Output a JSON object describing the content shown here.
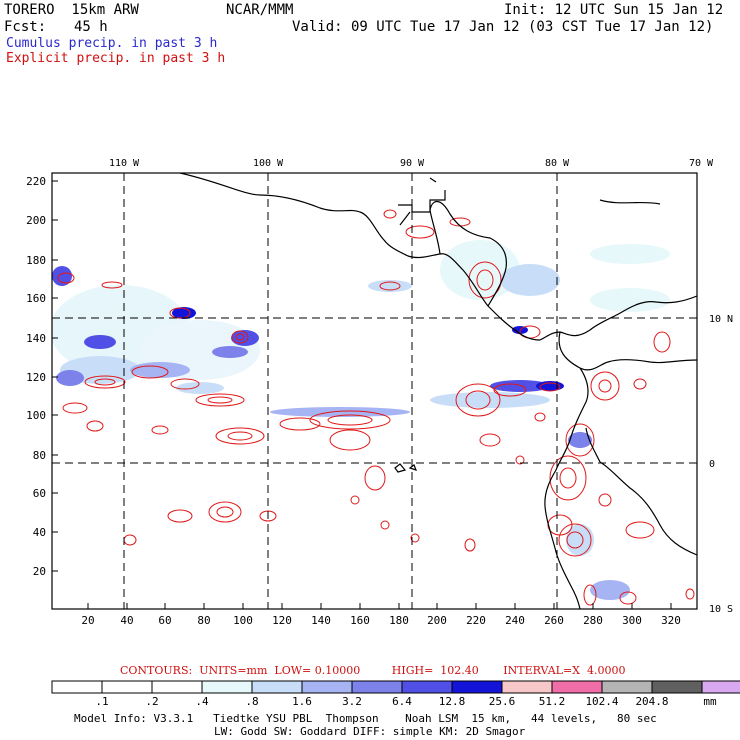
{
  "header": {
    "model": "TORERO  15km ARW",
    "org": "NCAR/MMM",
    "init": "Init: 12 UTC Sun 15 Jan 12",
    "fcst_label": "Fcst:",
    "fcst_value": "45 h",
    "valid": "Valid: 09 UTC Tue 17 Jan 12 (03 CST Tue 17 Jan 12)",
    "legend_cumulus": "Cumulus precip. in past 3 h",
    "legend_explicit": "Explicit precip. in past 3 h"
  },
  "map": {
    "lon_labels": [
      "110 W",
      "100 W",
      "90 W",
      "80 W",
      "70 W"
    ],
    "lat_labels": [
      "10 N",
      "0",
      "10 S"
    ],
    "y_ticks": [
      "220",
      "200",
      "180",
      "160",
      "140",
      "120",
      "100",
      "80",
      "60",
      "40",
      "20"
    ],
    "x_ticks": [
      "20",
      "40",
      "60",
      "80",
      "100",
      "120",
      "140",
      "160",
      "180",
      "200",
      "220",
      "240",
      "260",
      "280",
      "300",
      "320"
    ],
    "colors": {
      "coast": "#000000",
      "grid": "#000000",
      "explicit": "#e01818",
      "cumulus_light": "#c8dcf8",
      "cumulus_dark": "#1a1ad0"
    }
  },
  "contour_info": {
    "contours_label": "CONTOURS:",
    "units": "UNITS=mm",
    "low": "LOW= 0.10000",
    "high": "HIGH=  102.40",
    "interval": "INTERVAL=X  4.0000"
  },
  "colorbar": {
    "labels": [
      ".1",
      ".2",
      ".4",
      ".8",
      "1.6",
      "3.2",
      "6.4",
      "12.8",
      "25.6",
      "51.2",
      "102.4",
      "204.8"
    ],
    "unit": "mm",
    "colors": [
      "#ffffff",
      "#ffffff",
      "#ffffff",
      "#e6f8fa",
      "#c8def8",
      "#a6b4f4",
      "#7c82ea",
      "#5050e6",
      "#1414d8",
      "#f8c8c8",
      "#f06ea8",
      "#b4b4b4",
      "#606060",
      "#d8a8f0"
    ]
  },
  "footer": {
    "line1": "Model Info: V3.3.1   Tiedtke YSU PBL  Thompson    Noah LSM  15 km,   44 levels,   80 sec",
    "line2": "LW: Godd SW: Goddard DIFF: simple KM: 2D Smagor"
  }
}
